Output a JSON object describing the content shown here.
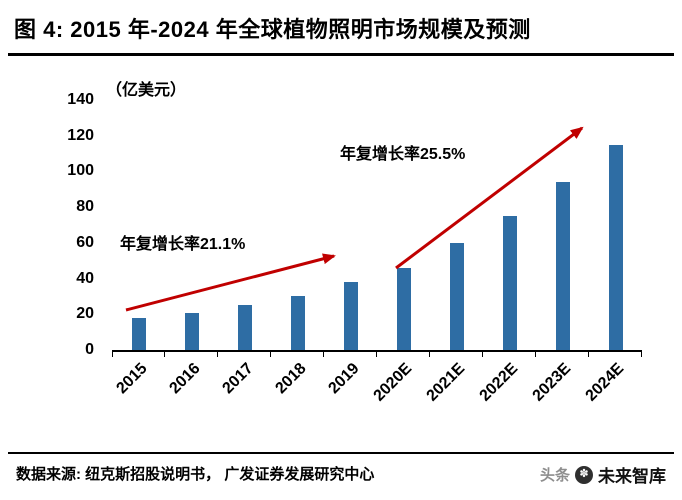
{
  "title": "图 4: 2015 年-2024 年全球植物照明市场规模及预测",
  "chart_data": {
    "type": "bar",
    "title": "2015 年-2024 年全球植物照明市场规模及预测",
    "unit": "（亿美元）",
    "categories": [
      "2015",
      "2016",
      "2017",
      "2018",
      "2019",
      "2020E",
      "2021E",
      "2022E",
      "2023E",
      "2024E"
    ],
    "values": [
      18,
      21,
      25,
      30,
      38,
      46,
      60,
      75,
      94,
      115
    ],
    "xlabel": "",
    "ylabel": "亿美元",
    "ylim": [
      0,
      140
    ],
    "ytick_step": 20,
    "grid": false,
    "legend": "none",
    "annotations": [
      {
        "text": "年复增长率21.1%",
        "span": "2015-2019"
      },
      {
        "text": "年复增长率25.5%",
        "span": "2020E-2024E"
      }
    ]
  },
  "colors": {
    "bar": "#2E6DA4",
    "arrow": "#C00000",
    "rule": "#000000"
  },
  "source": "数据来源: 纽克斯招股说明书， 广发证券发展研究中心",
  "watermark": {
    "prefix": "头条",
    "logo_glyph": "✽",
    "name": "未来智库"
  }
}
